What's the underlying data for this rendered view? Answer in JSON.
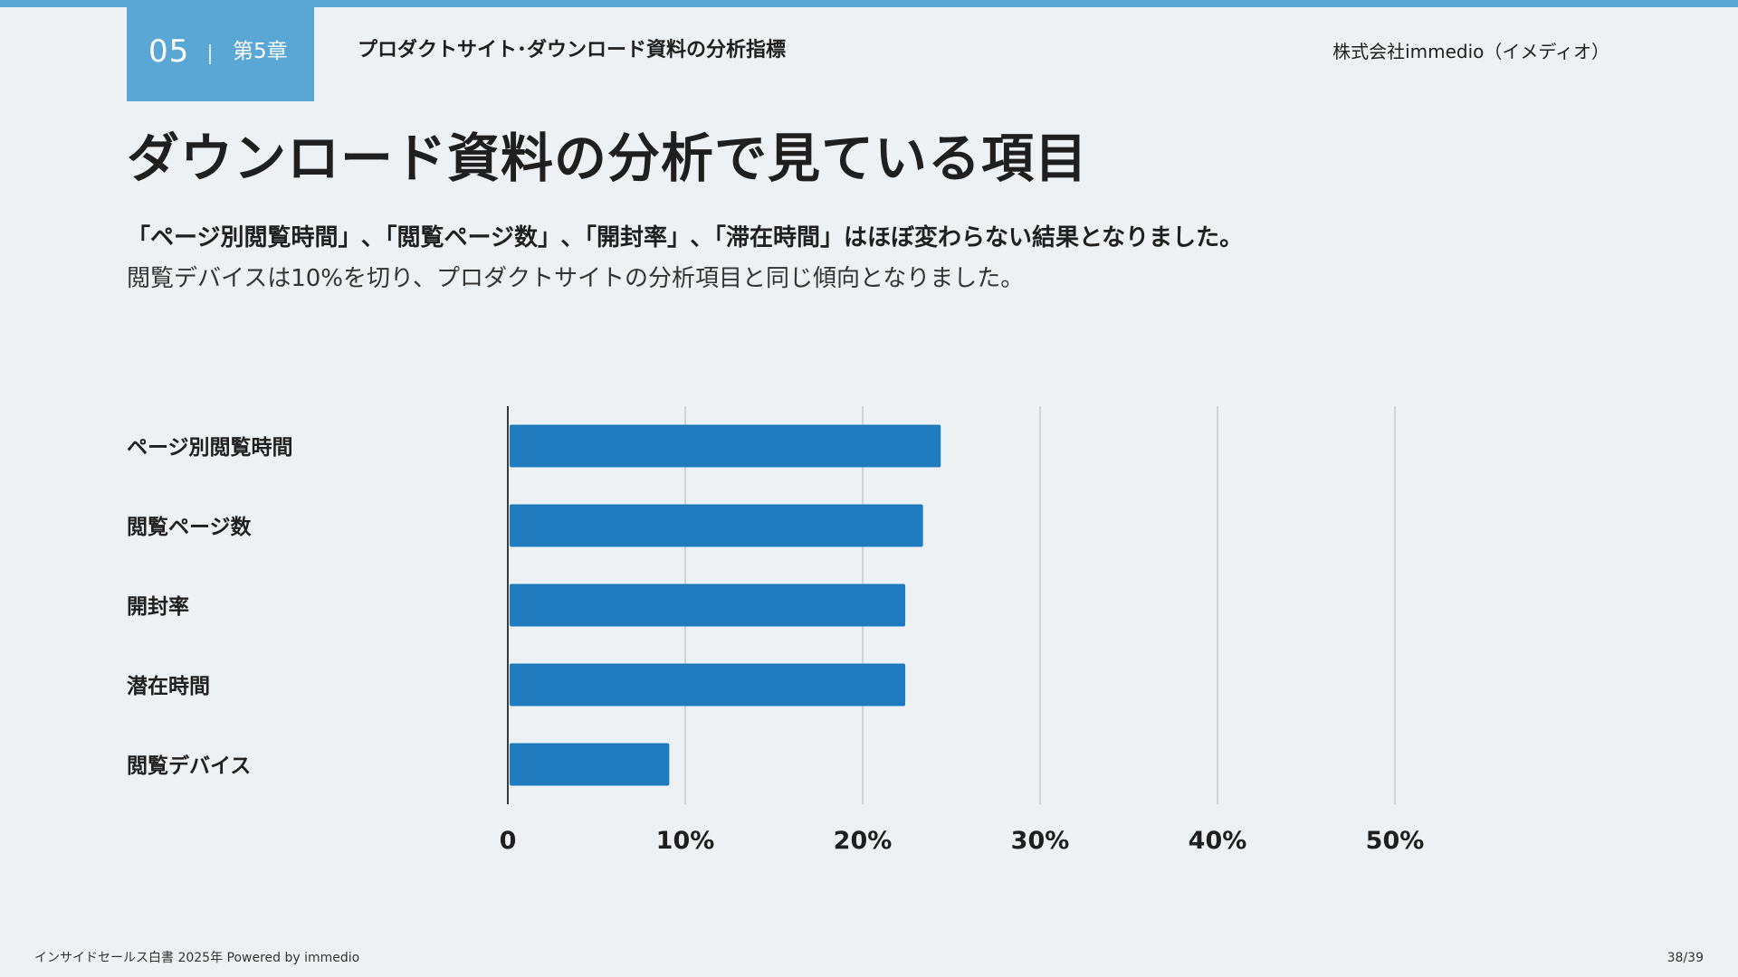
{
  "header": {
    "chapter_number": "05",
    "chapter_label": "第5章",
    "section_title": "プロダクトサイト･ダウンロード資料の分析指標",
    "company": "株式会社immedio（イメディオ）"
  },
  "page": {
    "title": "ダウンロード資料の分析で見ている項目",
    "lead_bold": "「ページ別閲覧時間」､「閲覧ページ数」､「開封率」､「滞在時間」はほぼ変わらない結果となりました。",
    "lead_text": "閲覧デバイスは10%を切り、プロダクトサイトの分析項目と同じ傾向となりました。"
  },
  "colors": {
    "accent": "#5aa7d6",
    "bar": "#1f7bbd"
  },
  "chart_data": {
    "type": "bar",
    "orientation": "horizontal",
    "categories": [
      "ページ別閲覧時間",
      "閲覧ページ数",
      "開封率",
      "潜在時間",
      "閲覧デバイス"
    ],
    "values": [
      24.4,
      23.4,
      22.4,
      22.4,
      9.1
    ],
    "xlim": [
      0,
      50
    ],
    "x_ticks": [
      "0",
      "10%",
      "20%",
      "30%",
      "40%",
      "50%"
    ],
    "grid": true
  },
  "footer": {
    "left": "インサイドセールス白書 2025年 Powered by immedio",
    "right": "38/39"
  }
}
